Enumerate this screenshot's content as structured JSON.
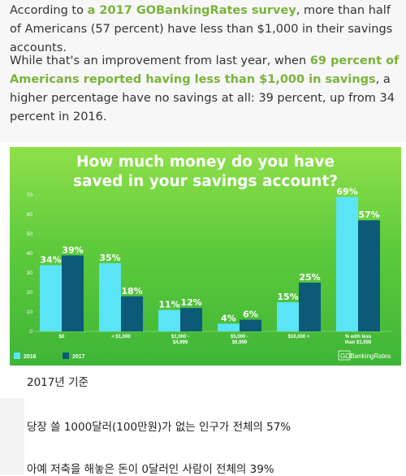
{
  "article": {
    "p1": {
      "t1": "According to ",
      "link": "a 2017 GOBankingRates survey",
      "t2": ", more than half of Americans (57 percent) have less than $1,000 in their savings accounts."
    },
    "p2": {
      "t1": "While that's an improvement from last year, when ",
      "link": "69 percent of Americans reported having less than $1,000 in savings",
      "t2": ", a higher percentage have no savings at all: 39 percent, up from 34 percent in 2016."
    }
  },
  "chart_data": {
    "type": "bar",
    "title_lines": [
      "How much money do you have",
      "saved in your savings account?"
    ],
    "categories": [
      "$0",
      "< $1,000",
      "$1,000 - $4,999",
      "$5,000 - $9,999",
      "$10,000 +",
      "% with less than $1,000"
    ],
    "category_lines": [
      [
        "$0"
      ],
      [
        "< $1,000"
      ],
      [
        "$1,000 -",
        "$4,999"
      ],
      [
        "$5,000 -",
        "$9,999"
      ],
      [
        "$10,000 +"
      ],
      [
        "% with less",
        "than $1,000"
      ]
    ],
    "series": [
      {
        "name": "2016",
        "color": "#5ae4f5",
        "values": [
          34,
          35,
          11,
          4,
          15,
          69
        ],
        "labels": [
          "34%",
          "35%",
          "11%",
          "4%",
          "15%",
          "69%"
        ]
      },
      {
        "name": "2017",
        "color": "#0c5a78",
        "values": [
          39,
          18,
          12,
          6,
          25,
          57
        ],
        "labels": [
          "39%",
          "18%",
          "12%",
          "6%",
          "25%",
          "57%"
        ]
      }
    ],
    "ylim": [
      0,
      70
    ],
    "yticks": [
      "0",
      "10",
      "20",
      "30",
      "40",
      "50",
      "60",
      "70"
    ],
    "grid": false,
    "legend": "bottom-left",
    "brand": "GOBankingRates"
  },
  "korean": {
    "line1": "2017년 기준",
    "line2": "당장 쓸 1000달러(100만원)가 없는 인구가 전체의 57%",
    "line3": "아예 저축을 해놓은 돈이 0달러인 사람이 전체의 39%"
  }
}
